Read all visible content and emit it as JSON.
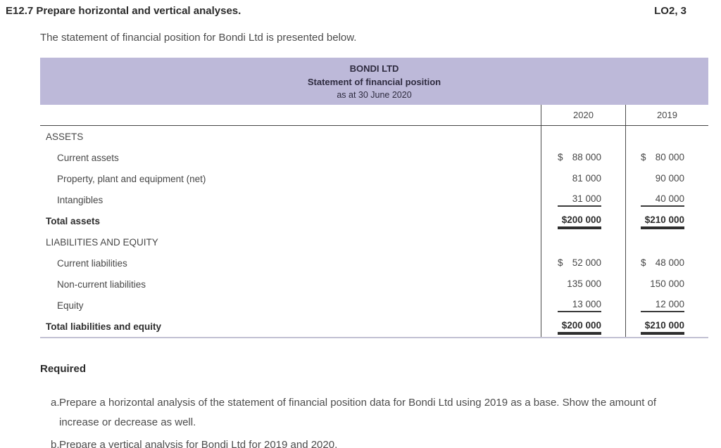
{
  "header": {
    "exercise_code_title": "E12.7 Prepare horizontal and vertical analyses.",
    "learning_objectives": "LO2, 3",
    "intro_text": "The statement of financial position for Bondi Ltd is presented below."
  },
  "statement": {
    "company": "BONDI LTD",
    "statement_title": "Statement of financial position",
    "statement_date": "as at 30 June 2020",
    "columns": [
      "2020",
      "2019"
    ],
    "rows": [
      {
        "style": "section",
        "label": "ASSETS"
      },
      {
        "style": "item",
        "label": "Current assets",
        "dollar": true,
        "values": [
          "88 000",
          "80 000"
        ]
      },
      {
        "style": "item",
        "label": "Property, plant and equipment (net)",
        "values": [
          "81 000",
          "90 000"
        ]
      },
      {
        "style": "item",
        "label": "Intangibles",
        "values": [
          "31 000",
          "40 000"
        ],
        "rule": "single"
      },
      {
        "style": "total",
        "label": "Total assets",
        "values": [
          "$200 000",
          "$210 000"
        ],
        "rule": "double"
      },
      {
        "style": "section",
        "label": "LIABILITIES AND EQUITY"
      },
      {
        "style": "item",
        "label": "Current liabilities",
        "dollar": true,
        "values": [
          "52 000",
          "48 000"
        ]
      },
      {
        "style": "item",
        "label": "Non-current liabilities",
        "values": [
          "135 000",
          "150 000"
        ]
      },
      {
        "style": "item",
        "label": "Equity",
        "values": [
          "13 000",
          "12 000"
        ],
        "rule": "single"
      },
      {
        "style": "total",
        "label": "Total liabilities and equity",
        "values": [
          "$200 000",
          "$210 000"
        ],
        "rule": "double"
      }
    ]
  },
  "required": {
    "heading": "Required",
    "items": [
      {
        "marker": "a.",
        "text": "Prepare a horizontal analysis of the statement of financial position data for Bondi Ltd using 2019 as a base. Show the amount of increase or decrease as well."
      },
      {
        "marker": "b.",
        "text": "Prepare a vertical analysis for Bondi Ltd for 2019 and 2020."
      }
    ]
  },
  "colors": {
    "banner_background": "#bdb9d9",
    "table_border_dark": "#4d4d4d",
    "table_bottom_border": "#c2c1d3",
    "body_text": "#4a4a4a",
    "heading_text": "#2b2b2b"
  }
}
